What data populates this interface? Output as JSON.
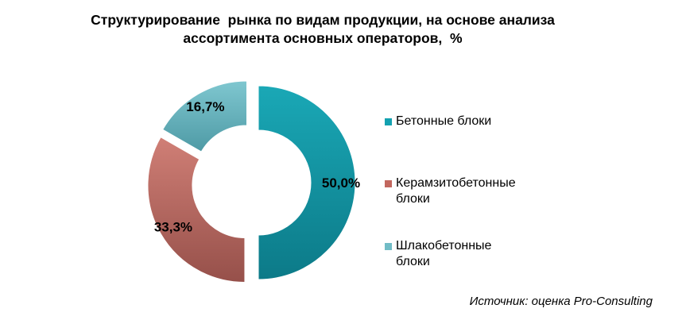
{
  "chart_data": {
    "type": "pie",
    "variant": "doughnut",
    "title_lines": [
      "Структурирование  рынка по видам продукции, на основе анализа",
      "ассортимента основных операторов,  %"
    ],
    "categories": [
      "Бетонные блоки",
      "Керамзитобетонные блоки",
      "Шлакобетонные блоки"
    ],
    "values": [
      50.0,
      33.3,
      16.7
    ],
    "data_labels": [
      "50,0%",
      "33,3%",
      "16,7%"
    ],
    "colors": [
      "#13A1B0",
      "#C2675E",
      "#71BCC6"
    ],
    "legend": {
      "placement": "right",
      "items": [
        {
          "lines": [
            "Бетонные блоки"
          ],
          "color": "#13A1B0"
        },
        {
          "lines": [
            "Керамзитобетонные",
            "блоки"
          ],
          "color": "#C2675E"
        },
        {
          "lines": [
            "Шлакобетонные",
            "блоки"
          ],
          "color": "#71BCC6"
        }
      ]
    }
  },
  "source": "Источник: оценка Pro-Consulting"
}
